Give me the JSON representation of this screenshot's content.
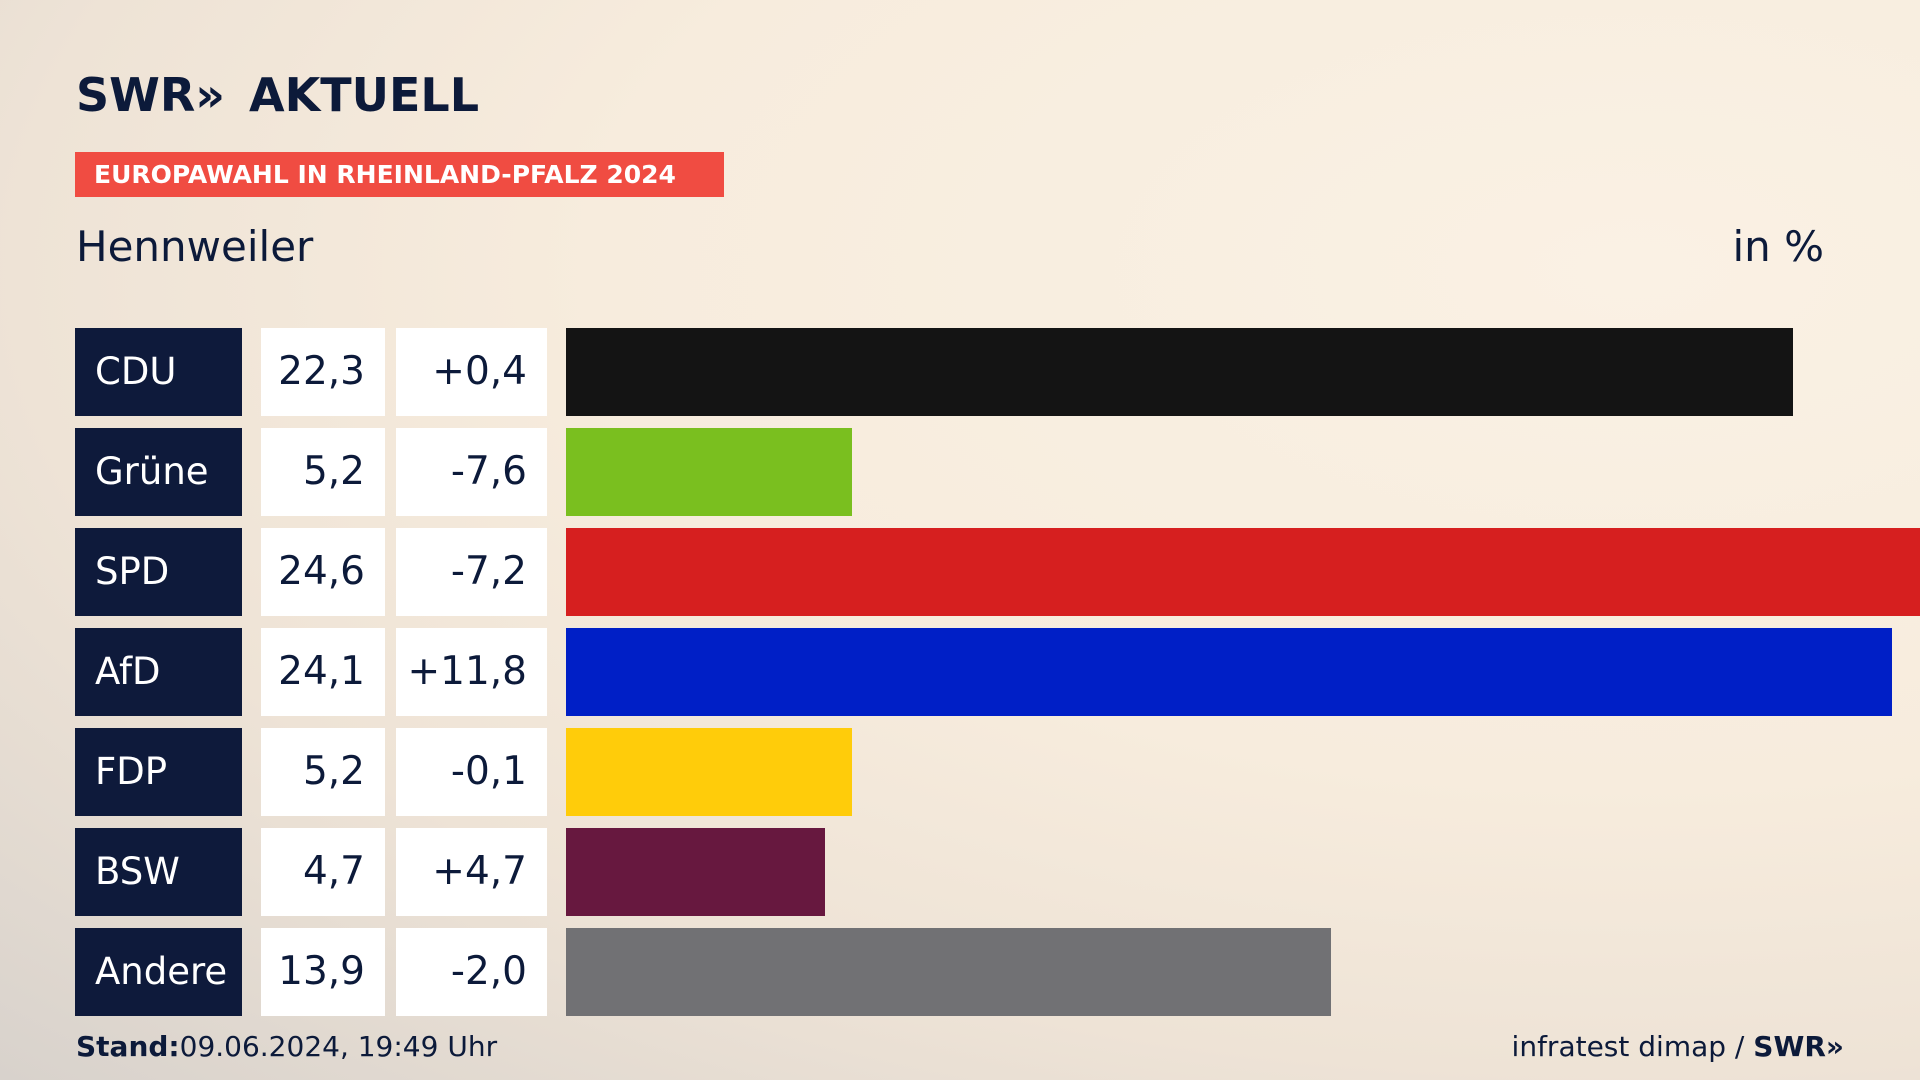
{
  "brand": {
    "name": "SWR",
    "arrows": "»",
    "section": "AKTUELL"
  },
  "banner": "EUROPAWAHL IN RHEINLAND-PFALZ 2024",
  "subtitle": "Hennweiler",
  "unit_label": "in %",
  "chart_data": {
    "type": "bar",
    "title": "EUROPAWAHL IN RHEINLAND-PFALZ 2024",
    "subtitle": "Hennweiler",
    "unit": "in %",
    "orientation": "horizontal",
    "categories": [
      "CDU",
      "Grüne",
      "SPD",
      "AfD",
      "FDP",
      "BSW",
      "Andere"
    ],
    "values": [
      22.3,
      5.2,
      24.6,
      24.1,
      5.2,
      4.7,
      13.9
    ],
    "value_labels": [
      "22,3",
      "5,2",
      "24,6",
      "24,1",
      "5,2",
      "4,7",
      "13,9"
    ],
    "changes": [
      0.4,
      -7.6,
      -7.2,
      11.8,
      -0.1,
      4.7,
      -2.0
    ],
    "change_labels": [
      "+0,4",
      "-7,6",
      "-7,2",
      "+11,8",
      "-0,1",
      "+4,7",
      "-2,0"
    ],
    "colors": [
      "#141414",
      "#7abf1f",
      "#d61f1f",
      "#001fc6",
      "#ffcc0a",
      "#67183f",
      "#717174"
    ],
    "xlim": [
      0,
      24.6
    ]
  },
  "footer": {
    "stand_label": "Stand:",
    "stand_value": "09.06.2024, 19:49 Uhr",
    "source": "infratest dimap /",
    "source_brand": "SWR",
    "source_arrows": "»"
  }
}
